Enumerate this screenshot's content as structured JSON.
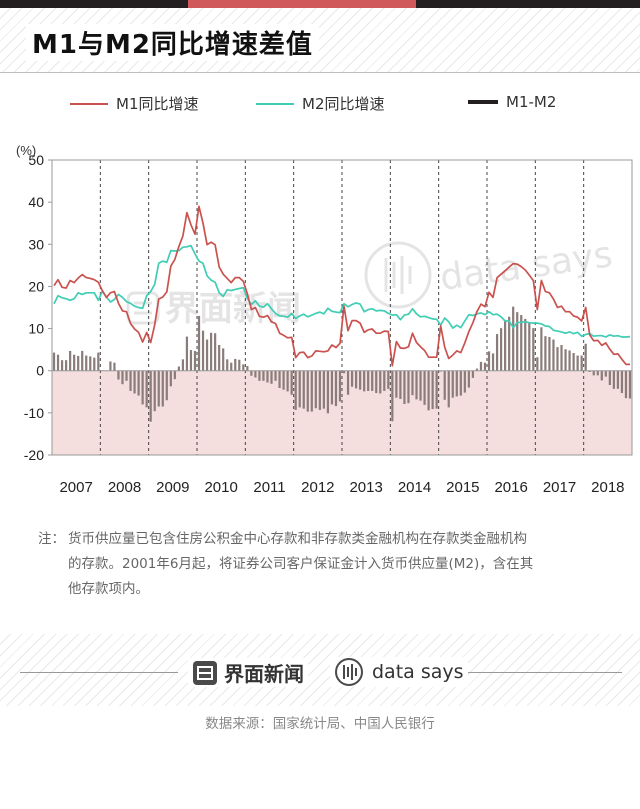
{
  "title": "M1与M2同比增速差值",
  "colors": {
    "m1": "#c9524e",
    "m2": "#3fcdb4",
    "diff": "#8a7c7a",
    "negative_fill": "#f5dede",
    "accent": "#d0595b"
  },
  "chart_data": {
    "type": "line",
    "ylabel": "(%)",
    "ylim": [
      -20,
      50
    ],
    "yticks": [
      "50",
      "40",
      "30",
      "20",
      "10",
      "0",
      "-10",
      "-20"
    ],
    "year_labels": [
      "2007",
      "2008",
      "2009",
      "2010",
      "2011",
      "2012",
      "2013",
      "2014",
      "2015",
      "2016",
      "2017",
      "2018"
    ],
    "series": [
      {
        "name": "M1同比增速",
        "type": "line",
        "values": [
          20.2,
          21.6,
          19.8,
          19.6,
          21.4,
          20.9,
          22.0,
          22.8,
          22.1,
          21.9,
          21.6,
          21.0,
          19.0,
          17.4,
          18.5,
          18.8,
          16.0,
          14.2,
          14.0,
          11.2,
          9.9,
          9.1,
          6.8,
          9.1,
          6.7,
          10.9,
          17.0,
          17.5,
          18.7,
          24.8,
          26.4,
          29.5,
          32.0,
          37.5,
          34.6,
          32.4,
          39.0,
          35.0,
          29.9,
          30.5,
          29.9,
          24.6,
          22.9,
          21.9,
          20.9,
          22.1,
          22.1,
          21.2,
          18.3,
          14.5,
          15.0,
          12.9,
          12.7,
          13.1,
          11.6,
          11.2,
          8.9,
          8.4,
          7.8,
          7.9,
          3.1,
          4.3,
          4.4,
          3.1,
          3.5,
          4.7,
          4.6,
          4.5,
          4.7,
          6.1,
          5.5,
          6.5,
          15.3,
          9.5,
          11.9,
          11.9,
          11.3,
          9.1,
          9.7,
          9.9,
          8.9,
          8.9,
          9.4,
          9.3,
          1.2,
          6.9,
          5.4,
          5.3,
          5.7,
          8.9,
          6.7,
          5.7,
          4.8,
          3.2,
          3.2,
          3.2,
          10.6,
          5.6,
          2.9,
          3.7,
          4.7,
          4.3,
          6.6,
          9.3,
          11.4,
          14.0,
          15.8,
          15.2,
          18.6,
          17.4,
          22.1,
          22.9,
          23.7,
          24.6,
          25.4,
          25.3,
          24.7,
          23.9,
          22.7,
          21.4,
          14.5,
          21.4,
          18.8,
          18.5,
          17.0,
          15.0,
          15.3,
          14.0,
          14.0,
          13.0,
          12.7,
          11.8,
          15.0,
          8.5,
          7.1,
          7.2,
          6.0,
          6.6,
          5.1,
          3.9,
          4.0,
          2.7,
          1.5,
          1.5
        ]
      },
      {
        "name": "M2同比增速",
        "type": "line",
        "values": [
          15.9,
          17.8,
          17.3,
          17.1,
          16.7,
          17.1,
          18.5,
          18.1,
          18.5,
          18.5,
          18.5,
          16.7,
          18.9,
          17.5,
          16.3,
          16.9,
          18.1,
          17.4,
          16.4,
          16.0,
          15.3,
          15.0,
          14.8,
          17.8,
          18.8,
          20.5,
          25.5,
          26.0,
          25.7,
          28.5,
          28.4,
          28.5,
          29.3,
          29.4,
          29.7,
          27.7,
          26.0,
          25.5,
          22.5,
          21.5,
          21.0,
          18.5,
          17.6,
          19.2,
          19.0,
          19.3,
          19.5,
          19.7,
          17.2,
          15.7,
          16.6,
          15.3,
          15.1,
          15.9,
          14.7,
          13.6,
          13.0,
          12.9,
          12.7,
          13.6,
          12.4,
          13.0,
          13.4,
          12.8,
          13.2,
          13.6,
          13.9,
          13.5,
          14.8,
          14.1,
          13.9,
          13.8,
          15.9,
          15.2,
          15.7,
          16.1,
          15.8,
          14.0,
          14.5,
          14.7,
          14.2,
          14.3,
          14.2,
          13.6,
          13.2,
          13.3,
          12.1,
          13.2,
          13.4,
          14.7,
          13.5,
          12.8,
          12.9,
          12.6,
          12.3,
          12.2,
          10.8,
          12.5,
          11.6,
          10.1,
          10.8,
          10.2,
          11.8,
          13.3,
          13.1,
          13.5,
          13.7,
          13.3,
          14.0,
          13.3,
          13.4,
          12.8,
          11.8,
          11.8,
          10.2,
          11.4,
          11.5,
          11.6,
          11.4,
          11.3,
          11.3,
          11.1,
          10.6,
          10.5,
          9.6,
          9.4,
          9.2,
          8.9,
          9.2,
          8.8,
          9.1,
          8.2,
          8.6,
          8.8,
          8.2,
          8.3,
          8.3,
          8.0,
          8.5,
          8.2,
          8.3,
          8.0,
          8.0,
          8.1
        ]
      },
      {
        "name": "M1-M2",
        "type": "bar",
        "values": [
          4.3,
          3.8,
          2.5,
          2.5,
          4.7,
          3.8,
          3.5,
          4.7,
          3.6,
          3.4,
          3.1,
          4.3,
          0.1,
          -0.1,
          2.2,
          1.9,
          -2.1,
          -3.2,
          -2.4,
          -4.8,
          -5.4,
          -5.9,
          -8.0,
          -8.7,
          -12.1,
          -9.6,
          -8.5,
          -8.5,
          -7.0,
          -3.7,
          -2.0,
          1.0,
          2.7,
          8.1,
          4.9,
          4.7,
          13.0,
          9.5,
          7.4,
          9.0,
          8.9,
          6.1,
          5.3,
          2.7,
          1.9,
          2.8,
          2.6,
          1.5,
          1.1,
          -1.2,
          -1.6,
          -2.4,
          -2.4,
          -2.8,
          -3.1,
          -2.4,
          -4.1,
          -4.5,
          -4.9,
          -5.7,
          -9.3,
          -8.7,
          -9.0,
          -9.7,
          -9.7,
          -8.9,
          -9.3,
          -9.0,
          -10.1,
          -8.0,
          -8.4,
          -7.3,
          -0.6,
          -5.7,
          -3.8,
          -4.2,
          -4.5,
          -4.9,
          -4.8,
          -4.8,
          -5.3,
          -5.4,
          -4.8,
          -4.3,
          -12.0,
          -6.4,
          -6.7,
          -7.9,
          -7.7,
          -5.8,
          -6.8,
          -7.1,
          -8.1,
          -9.4,
          -9.1,
          -9.0,
          -0.2,
          -6.9,
          -8.7,
          -6.4,
          -6.1,
          -5.9,
          -5.2,
          -4.0,
          -1.7,
          0.5,
          2.1,
          1.9,
          4.6,
          4.1,
          8.7,
          10.1,
          11.9,
          12.8,
          15.2,
          13.9,
          13.2,
          12.3,
          11.3,
          10.1,
          3.2,
          10.3,
          8.2,
          8.0,
          7.4,
          5.6,
          6.1,
          5.1,
          4.8,
          4.2,
          3.6,
          3.6,
          6.4,
          -0.3,
          -1.1,
          -1.1,
          -2.3,
          -1.4,
          -3.4,
          -4.3,
          -4.3,
          -5.3,
          -6.5,
          -6.6
        ]
      }
    ]
  },
  "note": {
    "label": "注：",
    "line1": "货币供应量已包含住房公积金中心存款和非存款类金融机构在存款类金融机构",
    "line2": "的存款。2001年6月起，将证券公司客户保证金计入货币供应量(M2)，含在其",
    "line3": "他存款项内。"
  },
  "brand": {
    "jiemian": "界面新闻",
    "datasays": "data says"
  },
  "watermark": {
    "jiemian": "界面新闻",
    "datasays": "data says"
  },
  "source": "数据来源：国家统计局、中国人民银行"
}
